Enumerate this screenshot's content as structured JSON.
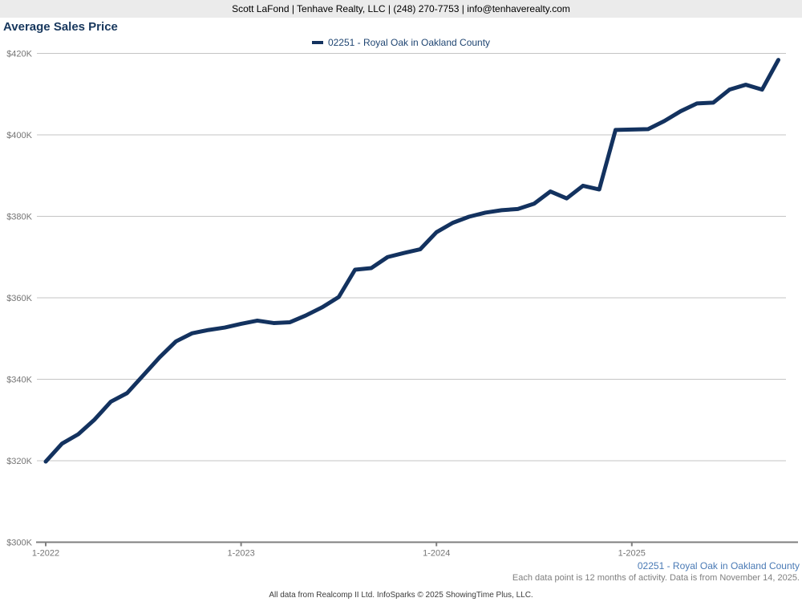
{
  "header": {
    "contact_line": "Scott LaFond | Tenhave Realty, LLC | (248) 270-7753 | info@tenhaverealty.com"
  },
  "title": "Average Sales Price",
  "legend": {
    "swatch_icon": "line-swatch"
  },
  "footer": {
    "series_label": "02251 - Royal Oak in Oakland County",
    "note": "Each data point is 12 months of activity. Data is from November 14, 2025.",
    "attribution": "All data from Realcomp II Ltd. InfoSparks © 2025 ShowingTime Plus, LLC."
  },
  "colors": {
    "line": "#13325f",
    "title": "#17375d",
    "legend_text": "#1f4572",
    "footer_series": "#4a7ab5",
    "grid": "#c4c4c4",
    "axis": "#7f7f7f",
    "tick_label": "#757575",
    "header_bg": "#ebebeb"
  },
  "chart_data": {
    "type": "line",
    "title": "Average Sales Price",
    "units": "USD thousands",
    "legend_position": "top",
    "grid": "horizontal-only",
    "ylim": [
      300,
      420
    ],
    "ytick_values": [
      300,
      320,
      340,
      360,
      380,
      400,
      420
    ],
    "ytick_labels": [
      "$300K",
      "$320K",
      "$340K",
      "$360K",
      "$380K",
      "$400K",
      "$420K"
    ],
    "xtick_labels": [
      "1-2022",
      "1-2023",
      "1-2024",
      "1-2025"
    ],
    "x": [
      "1-2022",
      "2-2022",
      "3-2022",
      "4-2022",
      "5-2022",
      "6-2022",
      "7-2022",
      "8-2022",
      "9-2022",
      "10-2022",
      "11-2022",
      "12-2022",
      "1-2023",
      "2-2023",
      "3-2023",
      "4-2023",
      "5-2023",
      "6-2023",
      "7-2023",
      "8-2023",
      "9-2023",
      "10-2023",
      "11-2023",
      "12-2023",
      "1-2024",
      "2-2024",
      "3-2024",
      "4-2024",
      "5-2024",
      "6-2024",
      "7-2024",
      "8-2024",
      "9-2024",
      "10-2024",
      "11-2024",
      "12-2024",
      "1-2025",
      "2-2025",
      "3-2025",
      "4-2025",
      "5-2025",
      "6-2025",
      "7-2025",
      "8-2025",
      "9-2025",
      "10-2025"
    ],
    "series": [
      {
        "name": "02251 - Royal Oak in Oakland County",
        "values": [
          319.8,
          324.2,
          326.5,
          330.1,
          334.5,
          336.6,
          341.0,
          345.4,
          349.3,
          351.3,
          352.1,
          352.7,
          353.6,
          354.4,
          353.8,
          354.0,
          355.7,
          357.7,
          360.2,
          366.9,
          367.3,
          370.0,
          371.0,
          371.9,
          376.1,
          378.4,
          379.9,
          380.9,
          381.5,
          381.8,
          383.1,
          386.1,
          384.4,
          387.5,
          386.6,
          401.2,
          401.3,
          401.4,
          403.4,
          405.8,
          407.7,
          407.9,
          411.1,
          412.3,
          411.1,
          418.4
        ]
      }
    ]
  }
}
